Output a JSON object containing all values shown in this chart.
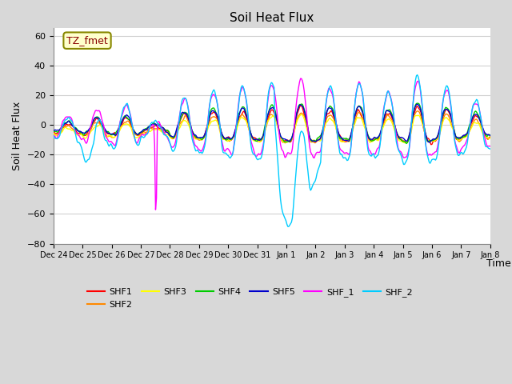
{
  "title": "Soil Heat Flux",
  "ylabel": "Soil Heat Flux",
  "xlabel": "Time",
  "ylim": [
    -80,
    65
  ],
  "yticks": [
    -80,
    -60,
    -40,
    -20,
    0,
    20,
    40,
    60
  ],
  "fig_bg_color": "#d8d8d8",
  "plot_bg_color": "#ffffff",
  "grid_color": "#d0d0d0",
  "series_colors": {
    "SHF1": "#ff0000",
    "SHF2": "#ff8800",
    "SHF3": "#ffff00",
    "SHF4": "#00cc00",
    "SHF5": "#0000cc",
    "SHF_1": "#ff00ff",
    "SHF_2": "#00ccff"
  },
  "annotation_text": "TZ_fmet",
  "annotation_color": "#880000",
  "annotation_bg": "#ffffcc",
  "annotation_edge": "#888800",
  "n_points": 480,
  "xtick_labels": [
    "Dec 24",
    "Dec 25",
    "Dec 26",
    "Dec 27",
    "Dec 28",
    "Dec 29",
    "Dec 30",
    "Dec 31",
    "Jan 1",
    "Jan 2",
    "Jan 3",
    "Jan 4",
    "Jan 5",
    "Jan 6",
    "Jan 7",
    "Jan 8"
  ],
  "legend_labels": [
    "SHF1",
    "SHF2",
    "SHF3",
    "SHF4",
    "SHF5",
    "SHF_1",
    "SHF_2"
  ]
}
